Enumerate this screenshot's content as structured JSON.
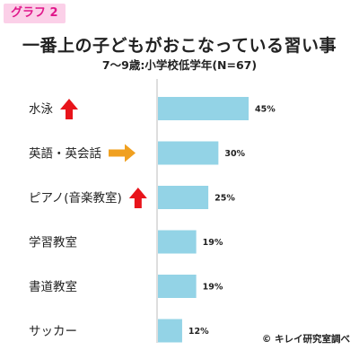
{
  "tag": "グラフ 2",
  "chart_data": {
    "type": "bar",
    "orientation": "horizontal",
    "title": "一番上の子どもがおこなっている習い事",
    "subtitle": "7〜9歳:小学校低学年(N=67)",
    "categories": [
      "水泳",
      "英語・英会話",
      "ピアノ(音楽教室)",
      "学習教室",
      "書道教室",
      "サッカー"
    ],
    "values": [
      45,
      30,
      25,
      19,
      19,
      12
    ],
    "value_labels": [
      "45%",
      "30%",
      "25%",
      "19%",
      "19%",
      "12%"
    ],
    "markers": [
      {
        "category": "水泳",
        "icon": "red-up-arrow-icon",
        "color": "#e8141b"
      },
      {
        "category": "英語・英会話",
        "icon": "orange-right-arrow-icon",
        "color": "#f0a020"
      },
      {
        "category": "ピアノ(音楽教室)",
        "icon": "red-up-arrow-icon",
        "color": "#e8141b"
      }
    ],
    "bar_color": "#93d3e6",
    "xlim": [
      0,
      100
    ],
    "grid": false
  },
  "credit": "© キレイ研究室調べ"
}
